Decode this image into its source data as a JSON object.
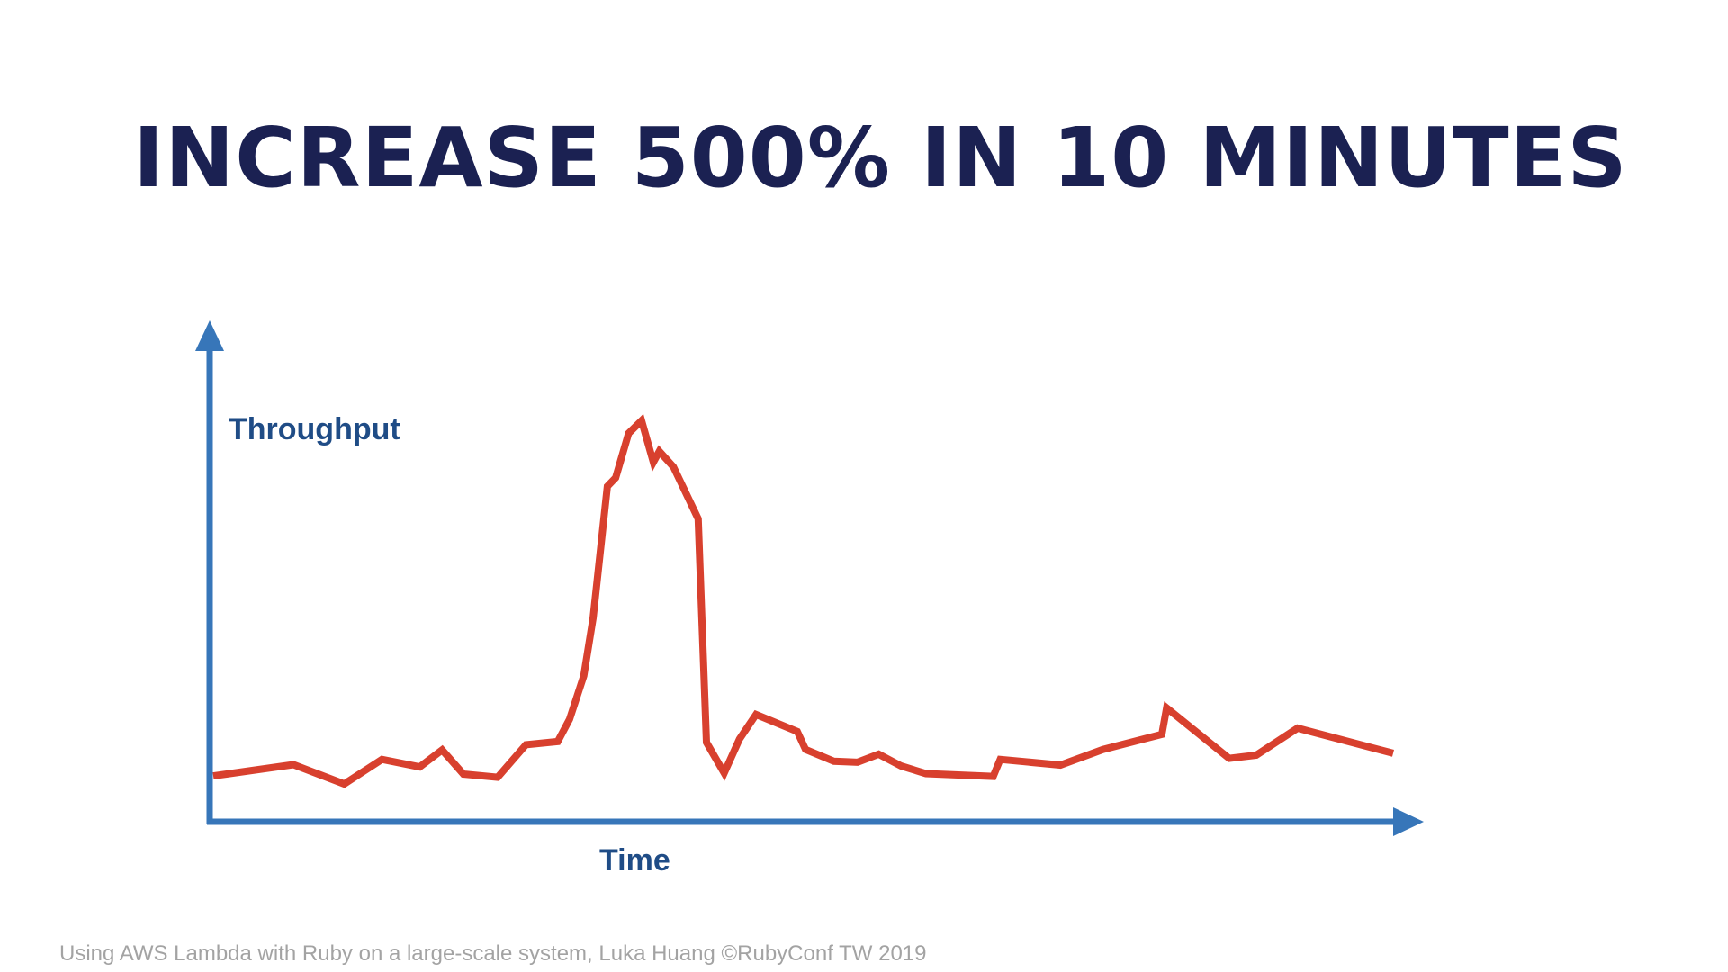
{
  "slide": {
    "title": "INCREASE 500% IN 10 MINUTES",
    "footer": "Using AWS Lambda with Ruby on a large-scale system, Luka Huang ©RubyConf TW 2019"
  },
  "colors": {
    "title": "#1b2152",
    "axis": "#3776b9",
    "axis_label": "#1f4c86",
    "series": "#d8402e",
    "footer": "#a3a3a3"
  },
  "chart_data": {
    "type": "line",
    "title": "",
    "xlabel": "Time",
    "ylabel": "Throughput",
    "xlim": [
      0,
      100
    ],
    "ylim": [
      0,
      100
    ],
    "grid": false,
    "legend": "none",
    "axis_arrows": true,
    "tick_labels": false,
    "series": [
      {
        "x": [
          0,
          6.8,
          11.1,
          14.3,
          17.5,
          19.4,
          21.2,
          24.1,
          26.5,
          29.2,
          30.2,
          31.4,
          32.2,
          33.4,
          34.1,
          35.2,
          36.3,
          37.3,
          37.8,
          39.0,
          41.1,
          41.8,
          43.3,
          44.6,
          46.0,
          49.5,
          50.2,
          52.6,
          54.6,
          56.4,
          58.3,
          60.4,
          66.1,
          66.7,
          71.8,
          75.4,
          80.4,
          80.8,
          86.1,
          88.4,
          91.9,
          100
        ],
        "y": [
          9.7,
          12.1,
          8.0,
          13.2,
          11.6,
          15.2,
          10.1,
          9.4,
          16.3,
          17.0,
          21.7,
          30.9,
          43.2,
          71.0,
          72.8,
          82.2,
          84.9,
          76.1,
          78.4,
          75.1,
          64.1,
          16.8,
          10.3,
          17.5,
          22.7,
          19.1,
          15.3,
          12.8,
          12.6,
          14.3,
          11.8,
          10.2,
          9.6,
          13.2,
          12.0,
          15.3,
          18.5,
          24.1,
          13.4,
          14.1,
          19.8,
          14.5
        ]
      }
    ]
  }
}
